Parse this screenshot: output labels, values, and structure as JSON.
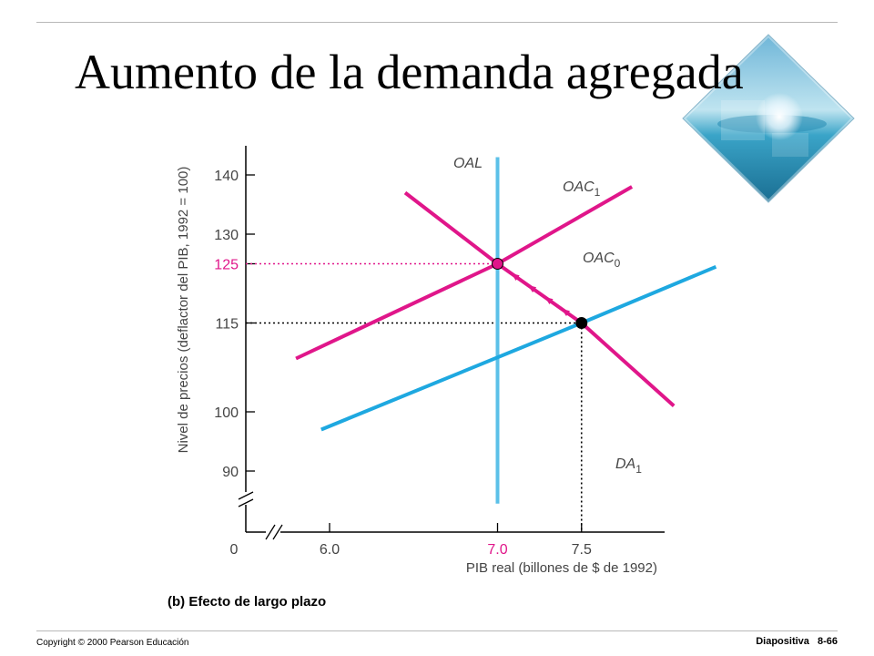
{
  "slide": {
    "title": "Aumento de la demanda agregada",
    "caption": "(b) Efecto de largo plazo",
    "copyright": "Copyright © 2000 Pearson Educación",
    "slide_label": "Diapositiva",
    "slide_number": "8-66"
  },
  "chart_data": {
    "type": "line",
    "title": "",
    "xlabel": "PIB real (billones de $ de 1992)",
    "ylabel": "Nivel de precios (deflactor del PIB, 1992 = 100)",
    "x_ticks": [
      {
        "value": 6.0,
        "label": "6.0"
      },
      {
        "value": 7.0,
        "label": "7.0",
        "highlight": true
      },
      {
        "value": 7.5,
        "label": "7.5"
      }
    ],
    "y_ticks": [
      {
        "value": 90,
        "label": "90"
      },
      {
        "value": 100,
        "label": "100"
      },
      {
        "value": 115,
        "label": "115"
      },
      {
        "value": 125,
        "label": "125",
        "highlight": true
      },
      {
        "value": 130,
        "label": "130"
      },
      {
        "value": 140,
        "label": "140"
      }
    ],
    "origin_label": "0",
    "xlim": [
      5.55,
      8.55
    ],
    "ylim": [
      88,
      144
    ],
    "axis_breaks": true,
    "grid": false,
    "series": [
      {
        "key": "OAL",
        "label": "OAL",
        "sub": "",
        "color": "#5bc0e8",
        "type": "vertical",
        "x": 7.0,
        "y_range": [
          84.5,
          143
        ]
      },
      {
        "key": "OAC1",
        "label": "OAC",
        "sub": "1",
        "color": "#e0168a",
        "points": [
          [
            5.8,
            109
          ],
          [
            7.0,
            125
          ],
          [
            7.8,
            138
          ]
        ]
      },
      {
        "key": "OAC0",
        "label": "OAC",
        "sub": "0",
        "color": "#1ea8e0",
        "points": [
          [
            5.95,
            97
          ],
          [
            7.5,
            115
          ],
          [
            8.3,
            124.5
          ]
        ]
      },
      {
        "key": "DA1",
        "label": "DA",
        "sub": "1",
        "color": "#e0168a",
        "points": [
          [
            6.45,
            137
          ],
          [
            7.0,
            125
          ],
          [
            7.5,
            115
          ],
          [
            8.05,
            101
          ]
        ]
      }
    ],
    "equilibria": [
      {
        "x": 7.0,
        "y": 125,
        "color": "#e0168a",
        "guide_color": "#e0168a"
      },
      {
        "x": 7.5,
        "y": 115,
        "color": "#000000",
        "guide_color": "#000000"
      }
    ],
    "arrows": {
      "from": [
        7.5,
        115
      ],
      "to": [
        7.0,
        125
      ],
      "count": 4,
      "color": "#e0168a"
    },
    "text_color": "#444444",
    "highlight_color": "#e0168a",
    "ylabel_color": "#444444"
  }
}
